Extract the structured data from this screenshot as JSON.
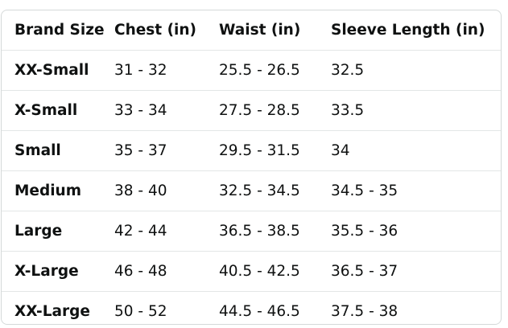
{
  "table": {
    "header": [
      "Brand Size",
      "Chest (in)",
      "Waist (in)",
      "Sleeve Length (in)"
    ],
    "rows": [
      [
        "XX-Small",
        "31 - 32",
        "25.5 - 26.5",
        "32.5"
      ],
      [
        "X-Small",
        "33 - 34",
        "27.5 - 28.5",
        "33.5"
      ],
      [
        "Small",
        "35 - 37",
        "29.5 - 31.5",
        "34"
      ],
      [
        "Medium",
        "38 - 40",
        "32.5 - 34.5",
        "34.5 - 35"
      ],
      [
        "Large",
        "42 - 44",
        "36.5 - 38.5",
        "35.5 - 36"
      ],
      [
        "X-Large",
        "46 - 48",
        "40.5 - 42.5",
        "36.5 - 37"
      ],
      [
        "XX-Large",
        "50 - 52",
        "44.5 - 46.5",
        "37.5 - 38"
      ]
    ]
  }
}
